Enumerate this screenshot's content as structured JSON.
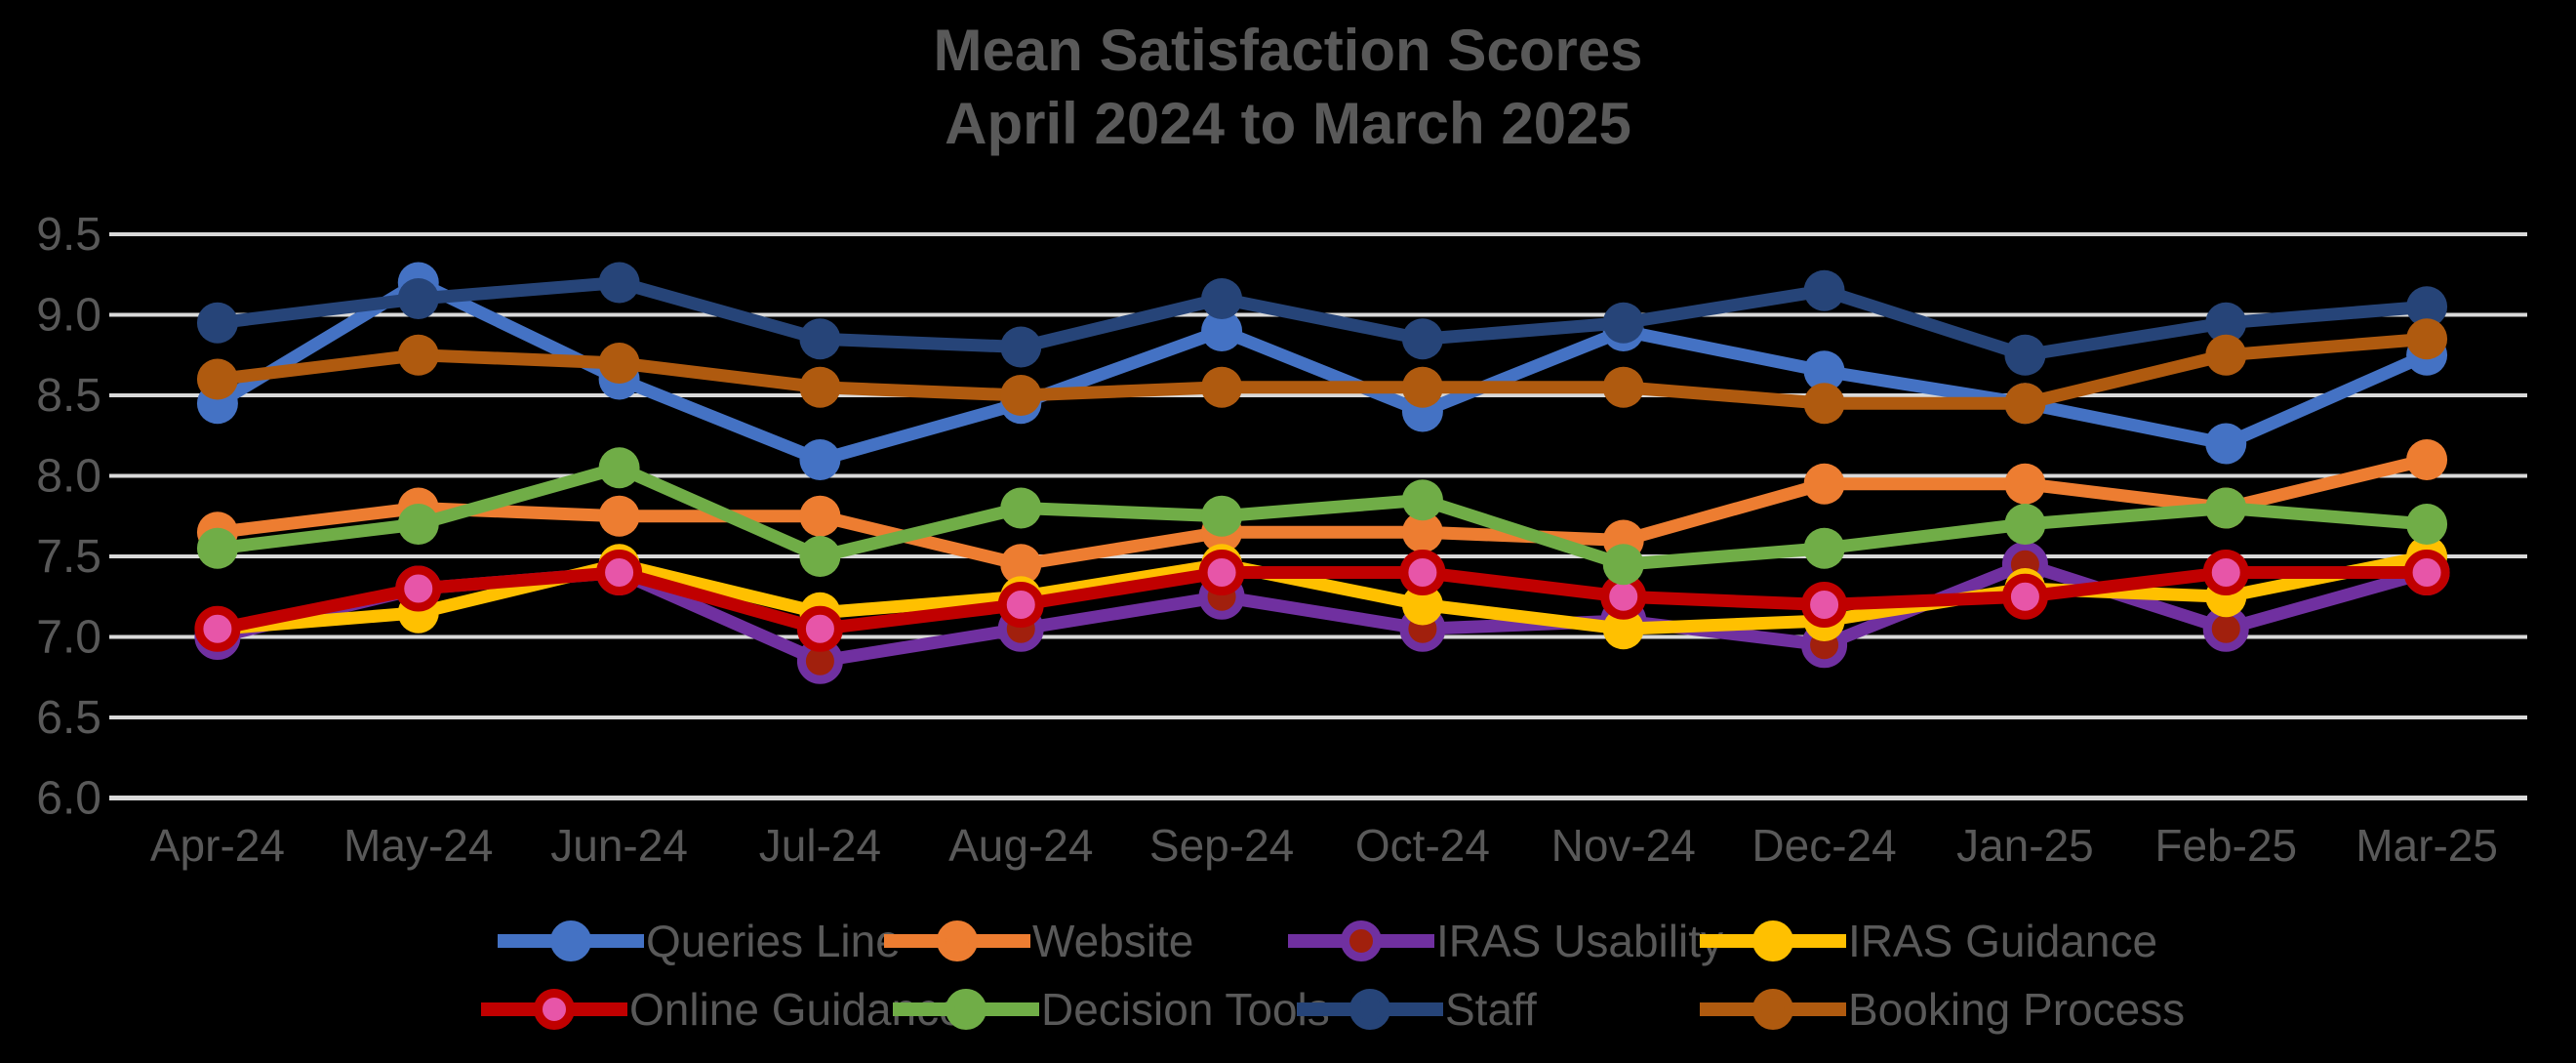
{
  "title": {
    "line1": "Mean Satisfaction Scores",
    "line2": "April 2024 to March 2025"
  },
  "colors": {
    "background": "#000000",
    "gridline": "#D9D9D9",
    "title_text": "#595959",
    "tick_text": "#595959",
    "legend_text": "#595959"
  },
  "chart_data": {
    "type": "line",
    "title": "Mean Satisfaction Scores",
    "subtitle": "April 2024 to March 2025",
    "xlabel": "",
    "ylabel": "",
    "ylim": [
      6.0,
      9.5
    ],
    "ytick_step": 0.5,
    "ytick_labels": [
      "6.0",
      "6.5",
      "7.0",
      "7.5",
      "8.0",
      "8.5",
      "9.0",
      "9.5"
    ],
    "grid": true,
    "legend_position": "bottom",
    "categories": [
      "Apr-24",
      "May-24",
      "Jun-24",
      "Jul-24",
      "Aug-24",
      "Sep-24",
      "Oct-24",
      "Nov-24",
      "Dec-24",
      "Jan-25",
      "Feb-25",
      "Mar-25"
    ],
    "series": [
      {
        "id": "queries_line",
        "name": "Queries Line",
        "color": "#4472C4",
        "marker_fill": "#4472C4",
        "marker_ring": "#4472C4",
        "values": [
          8.45,
          9.2,
          8.6,
          8.1,
          8.45,
          8.9,
          8.4,
          8.9,
          8.65,
          8.45,
          8.2,
          8.75
        ]
      },
      {
        "id": "website",
        "name": "Website",
        "color": "#ED7D31",
        "marker_fill": "#ED7D31",
        "marker_ring": "#ED7D31",
        "values": [
          7.65,
          7.8,
          7.75,
          7.75,
          7.45,
          7.65,
          7.65,
          7.6,
          7.95,
          7.95,
          7.8,
          8.1
        ]
      },
      {
        "id": "iras_usability",
        "name": "IRAS Usability",
        "color": "#7030A0",
        "marker_fill": "#A1200D",
        "marker_ring": "#7030A0",
        "values": [
          7.0,
          7.3,
          7.4,
          6.85,
          7.05,
          7.25,
          7.05,
          7.1,
          6.95,
          7.45,
          7.05,
          7.4
        ]
      },
      {
        "id": "iras_guidance",
        "name": "IRAS Guidance",
        "color": "#FFC000",
        "marker_fill": "#FFC000",
        "marker_ring": "#FFC000",
        "values": [
          7.05,
          7.15,
          7.45,
          7.15,
          7.25,
          7.45,
          7.2,
          7.05,
          7.1,
          7.3,
          7.25,
          7.5
        ]
      },
      {
        "id": "online_guidance",
        "name": "Online Guidance",
        "color": "#C00000",
        "marker_fill": "#E755A8",
        "marker_ring": "#C00000",
        "values": [
          7.05,
          7.3,
          7.4,
          7.05,
          7.2,
          7.4,
          7.4,
          7.25,
          7.2,
          7.25,
          7.4,
          7.4
        ]
      },
      {
        "id": "decision_tools",
        "name": "Decision Tools",
        "color": "#70AD47",
        "marker_fill": "#70AD47",
        "marker_ring": "#70AD47",
        "values": [
          7.55,
          7.7,
          8.05,
          7.5,
          7.8,
          7.75,
          7.85,
          7.45,
          7.55,
          7.7,
          7.8,
          7.7
        ]
      },
      {
        "id": "staff",
        "name": "Staff",
        "color": "#264478",
        "marker_fill": "#264478",
        "marker_ring": "#264478",
        "values": [
          8.95,
          9.1,
          9.2,
          8.85,
          8.8,
          9.1,
          8.85,
          8.95,
          9.15,
          8.75,
          8.95,
          9.05
        ]
      },
      {
        "id": "booking_process",
        "name": "Booking Process",
        "color": "#AF5A0F",
        "marker_fill": "#AF5A0F",
        "marker_ring": "#AF5A0F",
        "values": [
          8.6,
          8.75,
          8.7,
          8.55,
          8.5,
          8.55,
          8.55,
          8.55,
          8.45,
          8.45,
          8.75,
          8.85
        ]
      }
    ],
    "legend_rows": [
      [
        "queries_line",
        "website",
        "iras_usability",
        "iras_guidance"
      ],
      [
        "online_guidance",
        "decision_tools",
        "staff",
        "booking_process"
      ]
    ]
  }
}
